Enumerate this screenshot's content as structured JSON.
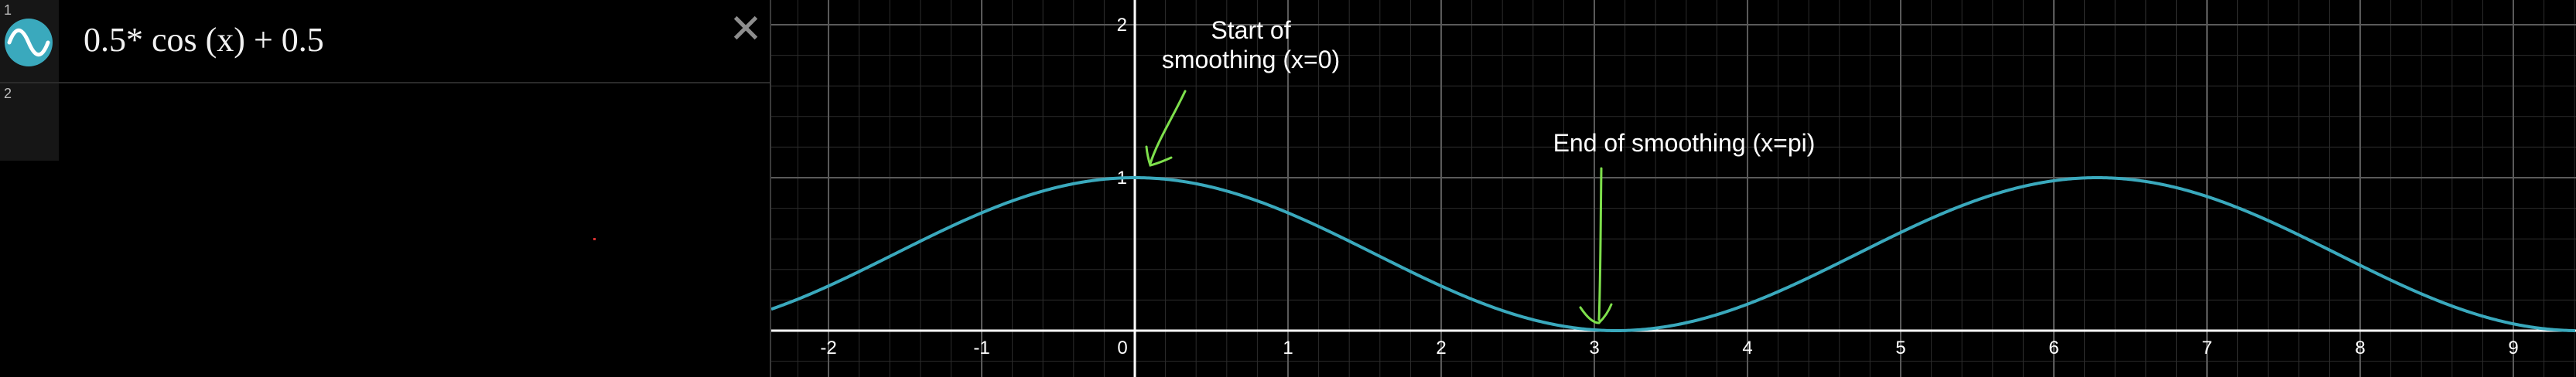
{
  "expressions": [
    {
      "index": "1",
      "latex": "0.5* cos (x) + 0.5",
      "color": "#3aa9bd"
    },
    {
      "index": "2",
      "latex": ""
    }
  ],
  "icons": {
    "close": "close-icon",
    "wave": "sine-wave-icon"
  },
  "annotations": {
    "start": "Start of\nsmoothing (x=0)",
    "end": "End of smoothing (x=pi)",
    "arrow_color": "#7ee04c"
  },
  "chart_data": {
    "type": "line",
    "title": "",
    "xlabel": "",
    "ylabel": "",
    "xlim": [
      -2.35,
      9.4
    ],
    "ylim": [
      -0.3,
      2.15
    ],
    "x_ticks": [
      "-2",
      "-1",
      "0",
      "1",
      "2",
      "3",
      "4",
      "5",
      "6",
      "7",
      "8",
      "9"
    ],
    "y_ticks": [
      "1",
      "2"
    ],
    "grid": true,
    "series": [
      {
        "expression": "0.5*cos(x)+0.5",
        "color": "#3aa9bd",
        "x": [
          -2.35,
          -2,
          -1.5,
          -1,
          -0.5,
          0,
          0.5,
          1,
          1.5,
          2,
          2.5,
          3,
          3.14,
          3.5,
          4,
          4.5,
          5,
          5.5,
          6,
          6.28,
          6.5,
          7,
          7.5,
          8,
          8.5,
          9,
          9.4
        ],
        "y": [
          0.15,
          0.29,
          0.54,
          0.77,
          0.94,
          1.0,
          0.94,
          0.77,
          0.54,
          0.29,
          0.1,
          0.0,
          0.0,
          0.03,
          0.17,
          0.39,
          0.64,
          0.85,
          0.98,
          1.0,
          0.99,
          0.88,
          0.67,
          0.43,
          0.2,
          0.04,
          0.0
        ]
      }
    ]
  }
}
